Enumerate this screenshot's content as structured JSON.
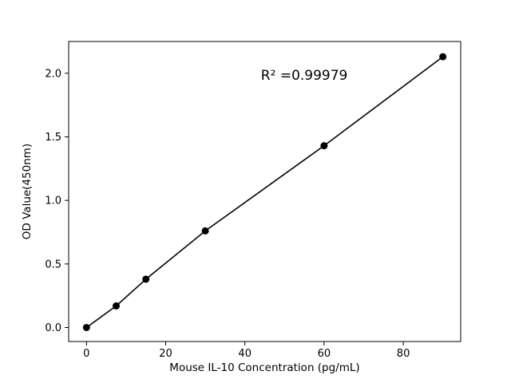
{
  "chart_data": {
    "type": "scatter",
    "title": "",
    "xlabel": "Mouse IL-10 Concentration (pg/mL)",
    "ylabel": "OD Value(450nm)",
    "annotation": {
      "text": "R² =0.99979",
      "x": 55,
      "y": 1.95
    },
    "x": [
      0,
      7.5,
      15,
      30,
      60,
      90
    ],
    "y": [
      0.0,
      0.17,
      0.38,
      0.76,
      1.43,
      2.13
    ],
    "xlim": [
      -4.5,
      94.5
    ],
    "ylim": [
      -0.11,
      2.25
    ],
    "xticks": [
      0,
      20,
      40,
      60,
      80
    ],
    "xtick_labels": [
      "0",
      "20",
      "40",
      "60",
      "80"
    ],
    "yticks": [
      0.0,
      0.5,
      1.0,
      1.5,
      2.0
    ],
    "ytick_labels": [
      "0.0",
      "0.5",
      "1.0",
      "1.5",
      "2.0"
    ],
    "grid": false,
    "line": true,
    "legend": null,
    "marker_color": "#000000",
    "line_color": "#000000",
    "axis_color": "#000000",
    "background": "#ffffff"
  }
}
